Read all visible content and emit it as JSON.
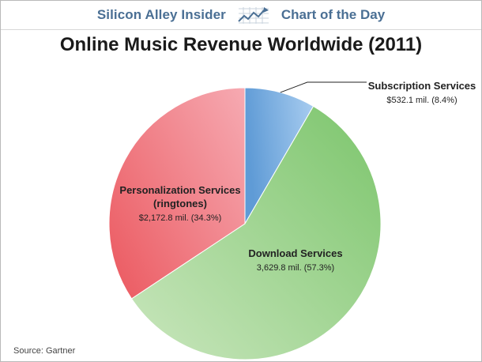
{
  "header": {
    "brand": "Silicon Alley Insider",
    "series_label": "Chart of the Day",
    "icon": "trend-chart-icon"
  },
  "chart_data": {
    "type": "pie",
    "title": "Online Music Revenue Worldwide (2011)",
    "unit": "mil.",
    "slices": [
      {
        "name": "Subscription Services",
        "value": 532.1,
        "value_label": "$532.1 mil. (8.4%)",
        "percent": 8.4,
        "color_light": "#a9cdf0",
        "color_dark": "#5f9bd6"
      },
      {
        "name": "Download Services",
        "value": 3629.8,
        "value_label": "3,629.8 mil. (57.3%)",
        "percent": 57.3,
        "color_light": "#c9e6bd",
        "color_dark": "#7cc56c"
      },
      {
        "name": "Personalization Services (ringtones)",
        "name_lines": [
          "Personalization Services",
          "(ringtones)"
        ],
        "value": 2172.8,
        "value_label": "$2,172.8 mil. (34.3%)",
        "percent": 34.3,
        "color_light": "#f6aab2",
        "color_dark": "#ec5f66"
      }
    ]
  },
  "source": "Source: Gartner"
}
